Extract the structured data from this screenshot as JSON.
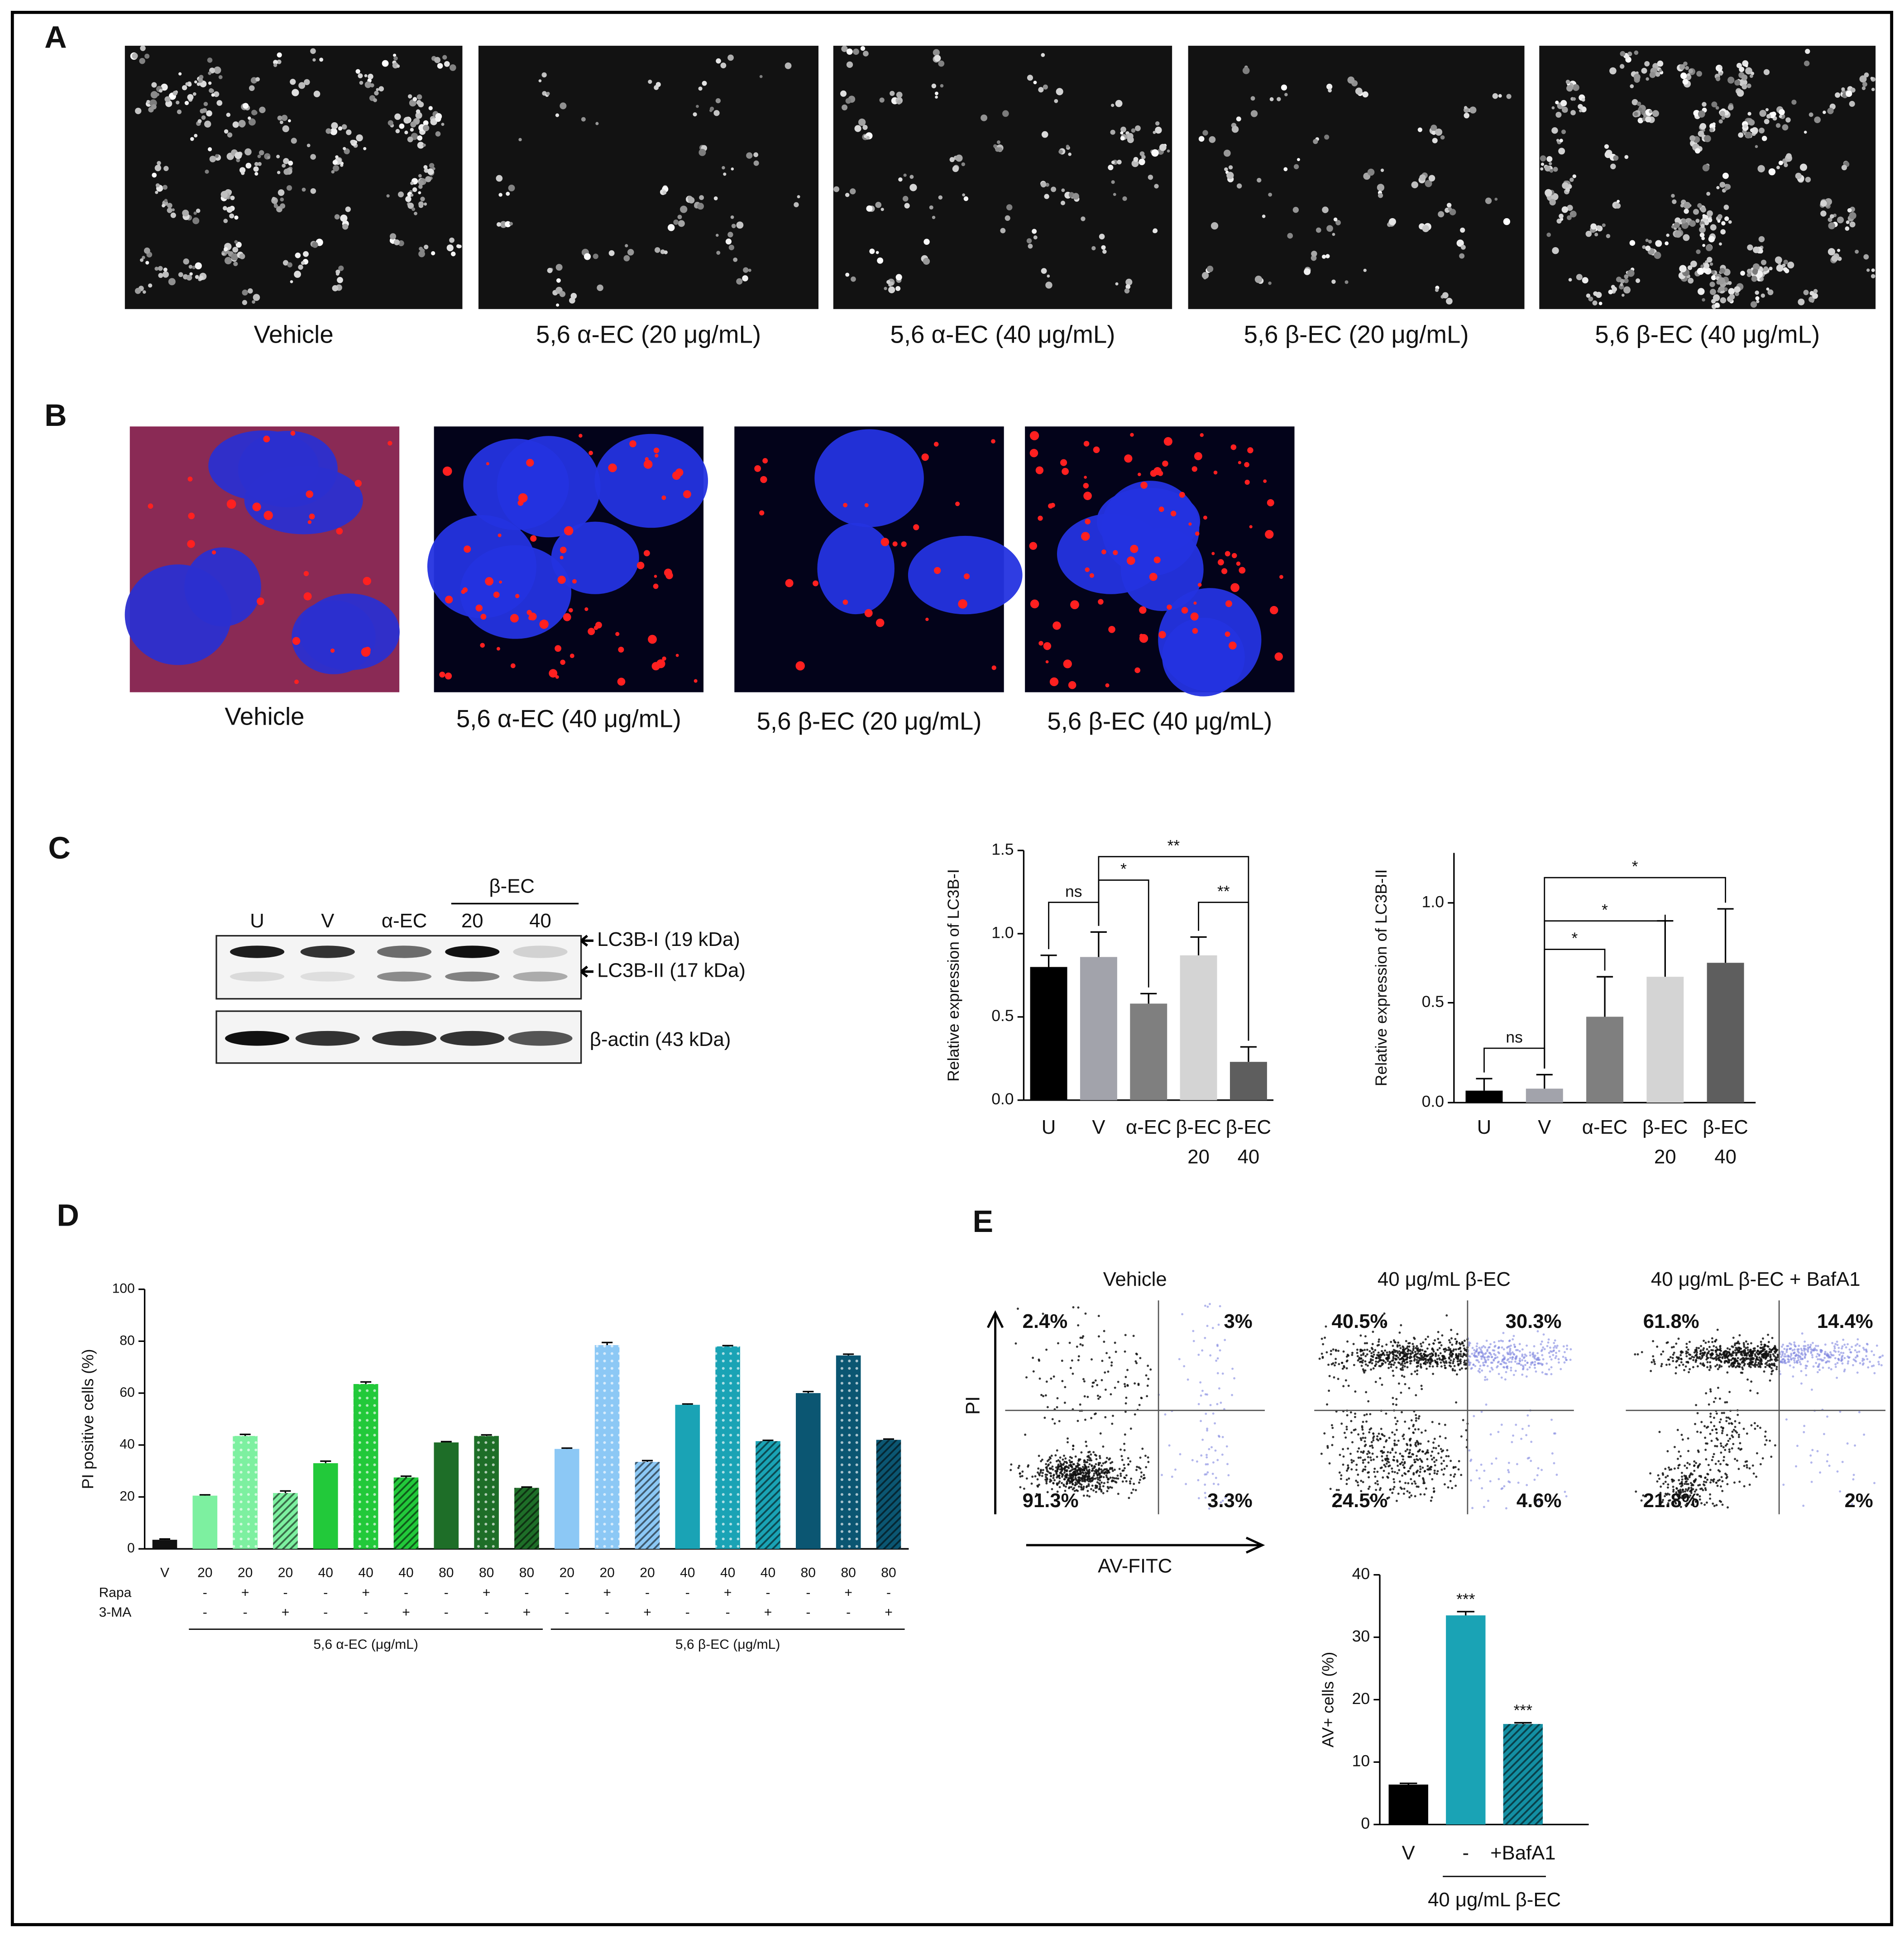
{
  "panel_labels": [
    "A",
    "B",
    "C",
    "D",
    "E"
  ],
  "panel_a": {
    "captions": [
      "Vehicle",
      "5,6 α-EC (20 μg/mL)",
      "5,6 α-EC (40 μg/mL)",
      "5,6 β-EC (20 μg/mL)",
      "5,6 β-EC (40 μg/mL)"
    ]
  },
  "panel_b": {
    "captions": [
      "Vehicle",
      "5,6 α-EC (40 μg/mL)",
      "5,6 β-EC (20 μg/mL)",
      "5,6 β-EC (40 μg/mL)"
    ]
  },
  "western_blot": {
    "group_label": "β-EC",
    "lanes": [
      "U",
      "V",
      "α-EC",
      "20",
      "40"
    ],
    "bands": [
      "LC3B-I (19 kDa)",
      "LC3B-II (17 kDa)",
      "β-actin (43 kDa)"
    ]
  },
  "flow_cytometry": {
    "y_label": "PI",
    "x_label": "AV-FITC",
    "plots": [
      {
        "title": "Vehicle",
        "quadrants": {
          "upper_left": "2.4%",
          "upper_right": "3%",
          "lower_left": "91.3%",
          "lower_right": "3.3%"
        }
      },
      {
        "title": "40 μg/mL β-EC",
        "quadrants": {
          "upper_left": "40.5%",
          "upper_right": "30.3%",
          "lower_left": "24.5%",
          "lower_right": "4.6%"
        }
      },
      {
        "title": "40 μg/mL β-EC + BafA1",
        "quadrants": {
          "upper_left": "61.8%",
          "upper_right": "14.4%",
          "lower_left": "21.8%",
          "lower_right": "2%"
        }
      }
    ]
  },
  "chart_data": [
    {
      "type": "bar",
      "y_label": "Relative expression of LC3B-I",
      "categories": [
        [
          "U"
        ],
        [
          "V"
        ],
        [
          "α-EC"
        ],
        [
          "β-EC",
          "20"
        ],
        [
          "β-EC",
          "40"
        ]
      ],
      "values": [
        0.8,
        0.86,
        0.58,
        0.87,
        0.23
      ],
      "errors": [
        0.07,
        0.15,
        0.06,
        0.11,
        0.09
      ],
      "colors": [
        "#000000",
        "#a2a3ab",
        "#7f7f7f",
        "#d4d4d4",
        "#5e5e5e"
      ],
      "ylim": [
        0,
        1.5
      ],
      "yticks": [
        {
          "value": 0,
          "label": "0.0"
        },
        0.5,
        {
          "value": 1,
          "label": "1.0"
        },
        1.5
      ],
      "significance": [
        {
          "pair": [
            0,
            1
          ],
          "label": "ns"
        },
        {
          "pair": [
            1,
            2
          ],
          "label": "*"
        },
        {
          "pair": [
            1,
            4
          ],
          "label": "**"
        },
        {
          "pair": [
            3,
            4
          ],
          "label": "**"
        }
      ]
    },
    {
      "type": "bar",
      "y_label": "Relative expression of LC3B-II",
      "categories": [
        [
          "U"
        ],
        [
          "V"
        ],
        [
          "α-EC"
        ],
        [
          "β-EC",
          "20"
        ],
        [
          "β-EC",
          "40"
        ]
      ],
      "values": [
        0.06,
        0.07,
        0.43,
        0.63,
        0.7
      ],
      "errors": [
        0.06,
        0.07,
        0.2,
        0.28,
        0.27
      ],
      "colors": [
        "#000000",
        "#a2a3ab",
        "#7f7f7f",
        "#d4d4d4",
        "#5e5e5e"
      ],
      "ylim": [
        0,
        1.25
      ],
      "yticks": [
        {
          "value": 0,
          "label": "0.0"
        },
        0.5,
        {
          "value": 1,
          "label": "1.0"
        }
      ],
      "significance": [
        {
          "pair": [
            0,
            1
          ],
          "label": "ns"
        },
        {
          "pair": [
            1,
            2
          ],
          "label": "*"
        },
        {
          "pair": [
            1,
            3
          ],
          "label": "*"
        },
        {
          "pair": [
            1,
            4
          ],
          "label": "*"
        }
      ]
    },
    {
      "type": "bar",
      "y_label": "PI positive cells (%)",
      "categories": [
        "V",
        "20",
        "20",
        "20",
        "40",
        "40",
        "40",
        "80",
        "80",
        "80",
        "20",
        "20",
        "20",
        "40",
        "40",
        "40",
        "80",
        "80",
        "80"
      ],
      "rows": [
        {
          "label": "Rapa",
          "values": [
            null,
            "-",
            "+",
            "-",
            "-",
            "+",
            "-",
            "-",
            "+",
            "-",
            "-",
            "+",
            "-",
            "-",
            "+",
            "-",
            "-",
            "+",
            "-"
          ]
        },
        {
          "label": "3-MA",
          "values": [
            null,
            "-",
            "-",
            "+",
            "-",
            "-",
            "+",
            "-",
            "-",
            "+",
            "-",
            "-",
            "+",
            "-",
            "-",
            "+",
            "-",
            "-",
            "+"
          ]
        }
      ],
      "values": [
        3.5,
        20.5,
        43.5,
        21.5,
        33,
        63.5,
        27.5,
        41,
        43.5,
        23.5,
        38.5,
        78.5,
        33.5,
        55.5,
        78,
        41.5,
        60,
        74.5,
        42
      ],
      "errors": [
        0.3,
        0.3,
        0.6,
        0.8,
        0.8,
        0.8,
        0.5,
        0.3,
        0.4,
        0.3,
        0.3,
        1,
        0.5,
        0.3,
        0.3,
        0.3,
        0.6,
        0.5,
        0.3
      ],
      "colors": [
        "#111111",
        "#7df0a0",
        "#7df0a0",
        "#7df0a0",
        "#22c93a",
        "#22c93a",
        "#22c93a",
        "#1e6e28",
        "#1e6e28",
        "#1e6e28",
        "#8cc8f5",
        "#8cc8f5",
        "#8cc8f5",
        "#1aa3b5",
        "#1aa3b5",
        "#1aa3b5",
        "#0b5672",
        "#0b5672",
        "#0b5672"
      ],
      "patterns": [
        "solid",
        "solid",
        "dots",
        "stripes",
        "solid",
        "dots",
        "stripes",
        "solid",
        "dots",
        "stripes",
        "solid",
        "dots",
        "stripes",
        "solid",
        "dots",
        "stripes",
        "solid",
        "dots",
        "stripes"
      ],
      "groups": [
        {
          "label": "5,6 α-EC (μg/mL)",
          "span": [
            1,
            9
          ]
        },
        {
          "label": "5,6 β-EC (μg/mL)",
          "span": [
            10,
            18
          ]
        }
      ],
      "ylim": [
        0,
        100
      ],
      "yticks": [
        0,
        20,
        40,
        60,
        80,
        100
      ]
    },
    {
      "type": "bar",
      "y_label": "AV+ cells (%)",
      "categories": [
        "V",
        "-",
        "+BafA1"
      ],
      "values": [
        6.4,
        33.5,
        16.1
      ],
      "errors": [
        0.2,
        0.6,
        0.2
      ],
      "colors": [
        "#000000",
        "#1aa3b5",
        "#138fa3"
      ],
      "patterns": [
        "solid",
        "solid",
        "stripes"
      ],
      "annotations": [
        {
          "index": 1,
          "label": "***"
        },
        {
          "index": 2,
          "label": "***"
        }
      ],
      "groups": [
        {
          "label": "40 μg/mL  β-EC",
          "span": [
            1,
            2
          ]
        }
      ],
      "ylim": [
        0,
        40
      ],
      "yticks": [
        0,
        10,
        20,
        30,
        40
      ]
    }
  ]
}
